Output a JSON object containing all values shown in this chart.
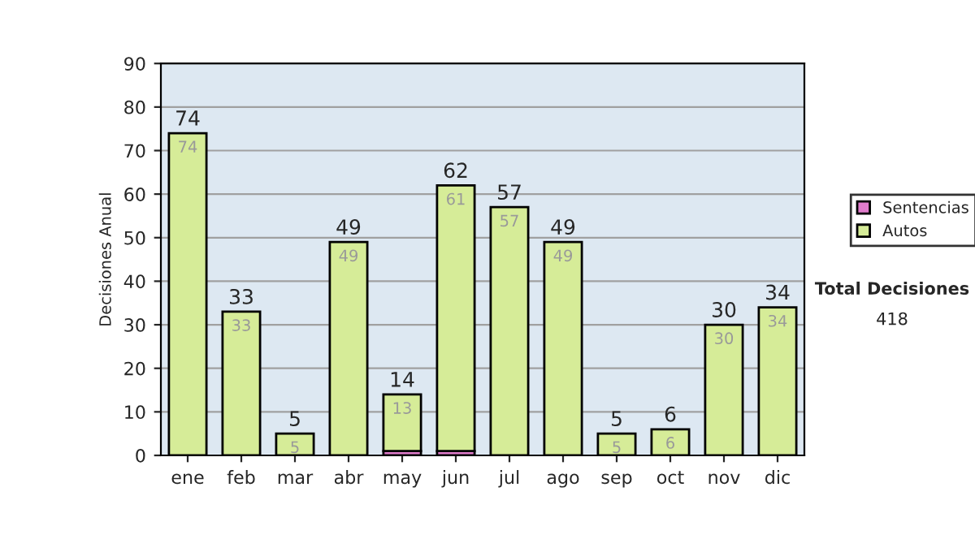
{
  "chart_data": {
    "type": "bar",
    "stacked": true,
    "ylabel": "Decisiones Anual",
    "categories": [
      "ene",
      "feb",
      "mar",
      "abr",
      "may",
      "jun",
      "jul",
      "ago",
      "sep",
      "oct",
      "nov",
      "dic"
    ],
    "series": [
      {
        "name": "Sentencias",
        "color": "#e07ccc",
        "values": [
          0,
          0,
          0,
          0,
          1,
          1,
          0,
          0,
          0,
          0,
          0,
          0
        ]
      },
      {
        "name": "Autos",
        "color": "#d6ec98",
        "values": [
          74,
          33,
          5,
          49,
          13,
          61,
          57,
          49,
          5,
          6,
          30,
          34
        ],
        "value_labels": [
          "74",
          "33",
          "5",
          "49",
          "13",
          "61",
          "57",
          "49",
          "5",
          "6",
          "30",
          "34"
        ]
      }
    ],
    "totals": [
      "74",
      "33",
      "5",
      "49",
      "14",
      "62",
      "57",
      "49",
      "5",
      "6",
      "30",
      "34"
    ],
    "ylim": [
      0,
      90
    ],
    "yticks": [
      0,
      10,
      20,
      30,
      40,
      50,
      60,
      70,
      80,
      90
    ],
    "grid": "y",
    "legend": "right",
    "annotations": [
      "Total Decisiones",
      "418"
    ]
  }
}
